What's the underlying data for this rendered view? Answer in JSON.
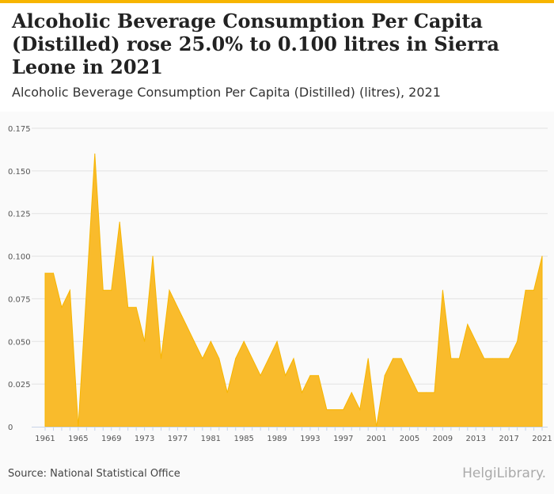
{
  "title": "Alcoholic Beverage Consumption Per Capita (Distilled) rose 25.0% to 0.100 litres in Sierra Leone in 2021",
  "subtitle": "Alcoholic Beverage Consumption Per Capita (Distilled) (litres), 2021",
  "source": "Source: National Statistical Office",
  "logo": "HelgiLibrary.",
  "colors": {
    "fill": "#f9bb2c",
    "line": "#f7b500"
  },
  "chart_data": {
    "type": "area",
    "title": "Alcoholic Beverage Consumption Per Capita (Distilled) (litres), 2021",
    "xlabel": "",
    "ylabel": "",
    "ylim": [
      0,
      0.175
    ],
    "yticks": [
      "0",
      "0.025",
      "0.050",
      "0.075",
      "0.100",
      "0.125",
      "0.150",
      "0.175"
    ],
    "xticks": [
      "1961",
      "1965",
      "1969",
      "1973",
      "1977",
      "1981",
      "1985",
      "1989",
      "1993",
      "1997",
      "2001",
      "2005",
      "2009",
      "2013",
      "2017",
      "2021"
    ],
    "x_start": 1961,
    "values": [
      0.09,
      0.09,
      0.07,
      0.08,
      0,
      0.08,
      0.16,
      0.08,
      0.08,
      0.12,
      0.07,
      0.07,
      0.05,
      0.1,
      0.04,
      0.08,
      0.07,
      0.06,
      0.05,
      0.04,
      0.05,
      0.04,
      0.02,
      0.04,
      0.05,
      0.04,
      0.03,
      0.04,
      0.05,
      0.03,
      0.04,
      0.02,
      0.03,
      0.03,
      0.01,
      0.01,
      0.01,
      0.02,
      0.01,
      0.04,
      0,
      0.03,
      0.04,
      0.04,
      0.03,
      0.02,
      0.02,
      0.02,
      0.08,
      0.04,
      0.04,
      0.06,
      0.05,
      0.04,
      0.04,
      0.04,
      0.04,
      0.05,
      0.08,
      0.08,
      0.1
    ],
    "grid": true
  }
}
